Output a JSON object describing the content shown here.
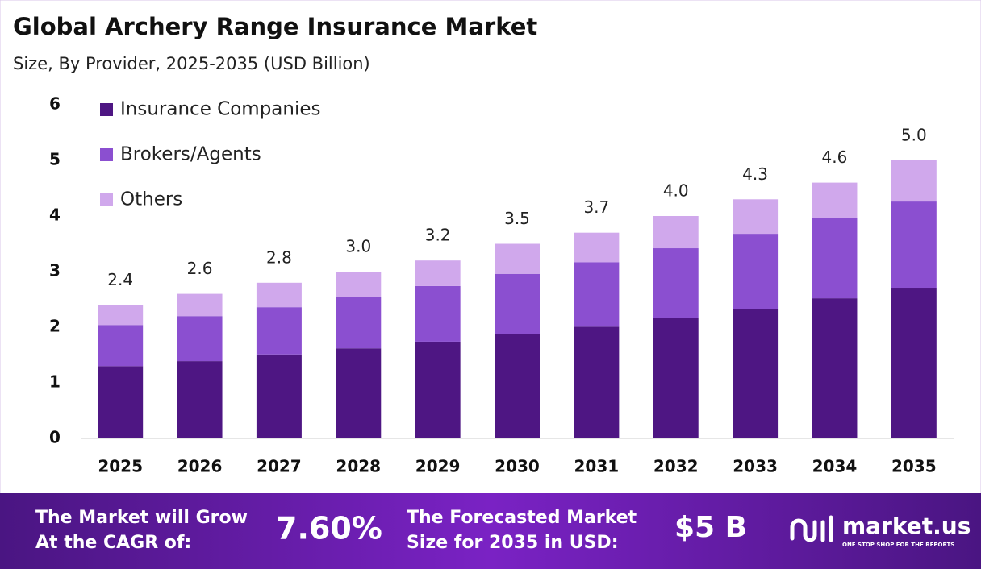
{
  "chart_data": {
    "type": "stacked_bar",
    "title": "Global Archery Range Insurance Market",
    "subtitle": "Size, By Provider, 2025-2035 (USD Billion)",
    "categories": [
      "2025",
      "2026",
      "2027",
      "2028",
      "2029",
      "2030",
      "2031",
      "2032",
      "2033",
      "2034",
      "2035"
    ],
    "series": [
      {
        "name": "Insurance Companies",
        "color": "#4e1683",
        "values": [
          1.3,
          1.39,
          1.51,
          1.62,
          1.74,
          1.87,
          2.01,
          2.17,
          2.33,
          2.52,
          2.71
        ]
      },
      {
        "name": "Brokers/Agents",
        "color": "#8b4fd0",
        "values": [
          0.74,
          0.81,
          0.85,
          0.93,
          1.0,
          1.09,
          1.16,
          1.25,
          1.35,
          1.44,
          1.55
        ]
      },
      {
        "name": "Others",
        "color": "#d0a8ec",
        "values": [
          0.36,
          0.4,
          0.44,
          0.45,
          0.46,
          0.54,
          0.53,
          0.58,
          0.62,
          0.64,
          0.74
        ]
      }
    ],
    "totals": [
      2.4,
      2.6,
      2.8,
      3.0,
      3.2,
      3.5,
      3.7,
      4.0,
      4.3,
      4.6,
      5.0
    ],
    "total_labels": [
      "2.4",
      "2.6",
      "2.8",
      "3.0",
      "3.2",
      "3.5",
      "3.7",
      "4.0",
      "4.3",
      "4.6",
      "5.0"
    ],
    "ylim": [
      0,
      6
    ],
    "yticks": [
      0,
      1,
      2,
      3,
      4,
      5,
      6
    ],
    "grid": false,
    "legend": "top-left"
  },
  "footer": {
    "cagr_text": [
      "The Market will Grow",
      "At the CAGR of:"
    ],
    "cagr_value": "7.60%",
    "forecast_text": [
      "The Forecasted Market",
      "Size for 2035 in USD:"
    ],
    "forecast_value": "$5 B",
    "brand": "market.us",
    "tagline": "ONE STOP SHOP FOR THE REPORTS"
  }
}
